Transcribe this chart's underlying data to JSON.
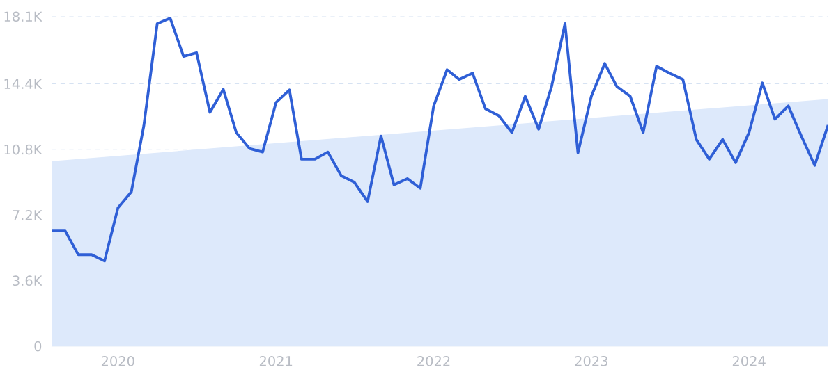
{
  "chart_data": {
    "type": "line",
    "x": [
      "2019-08",
      "2019-09",
      "2019-10",
      "2019-11",
      "2019-12",
      "2020-01",
      "2020-02",
      "2020-03",
      "2020-04",
      "2020-05",
      "2020-06",
      "2020-07",
      "2020-08",
      "2020-09",
      "2020-10",
      "2020-11",
      "2020-12",
      "2021-01",
      "2021-02",
      "2021-03",
      "2021-04",
      "2021-05",
      "2021-06",
      "2021-07",
      "2021-08",
      "2021-09",
      "2021-10",
      "2021-11",
      "2021-12",
      "2022-01",
      "2022-02",
      "2022-03",
      "2022-04",
      "2022-05",
      "2022-06",
      "2022-07",
      "2022-08",
      "2022-09",
      "2022-10",
      "2022-11",
      "2022-12",
      "2023-01",
      "2023-02",
      "2023-03",
      "2023-04",
      "2023-05",
      "2023-06",
      "2023-07",
      "2023-08",
      "2023-09",
      "2023-10",
      "2023-11",
      "2023-12",
      "2024-01",
      "2024-02",
      "2024-03",
      "2024-04",
      "2024-05",
      "2024-06",
      "2024-07"
    ],
    "series": [
      {
        "type": "area",
        "color": "#dde9fb",
        "x": [
          "2019-08",
          "2024-07"
        ],
        "values": [
          10150,
          13560
        ]
      },
      {
        "color": "#2f5fd6",
        "values": [
          6320,
          6320,
          5020,
          5020,
          4670,
          7580,
          8460,
          12100,
          17700,
          18000,
          15900,
          16100,
          12830,
          14090,
          11720,
          10840,
          10650,
          13370,
          14060,
          10260,
          10260,
          10650,
          9350,
          9000,
          7930,
          11530,
          8850,
          9190,
          8660,
          13180,
          15170,
          14630,
          14980,
          13020,
          12640,
          11720,
          13710,
          11910,
          14250,
          17700,
          10610,
          13710,
          15510,
          14250,
          13710,
          11720,
          15360,
          14980,
          14630,
          11340,
          10260,
          11340,
          10070,
          11720,
          14440,
          12450,
          13180,
          11530,
          9920,
          12060
        ]
      }
    ],
    "xlim": [
      "2019-08",
      "2024-07"
    ],
    "xticks": [
      {
        "value": "2020",
        "label": "2020"
      },
      {
        "value": "2021",
        "label": "2021"
      },
      {
        "value": "2022",
        "label": "2022"
      },
      {
        "value": "2023",
        "label": "2023"
      },
      {
        "value": "2024",
        "label": "2024"
      }
    ],
    "ylim": [
      0,
      18100
    ],
    "yticks": [
      0,
      {
        "value": 3600,
        "label": "3.6K"
      },
      {
        "value": 7200,
        "label": "7.2K"
      },
      {
        "value": 10800,
        "label": "10.8K"
      },
      {
        "value": 14400,
        "label": "14.4K"
      },
      {
        "value": 18100,
        "label": "18.1K"
      }
    ],
    "grid": "y",
    "line_style": "solid",
    "marker": "none"
  }
}
